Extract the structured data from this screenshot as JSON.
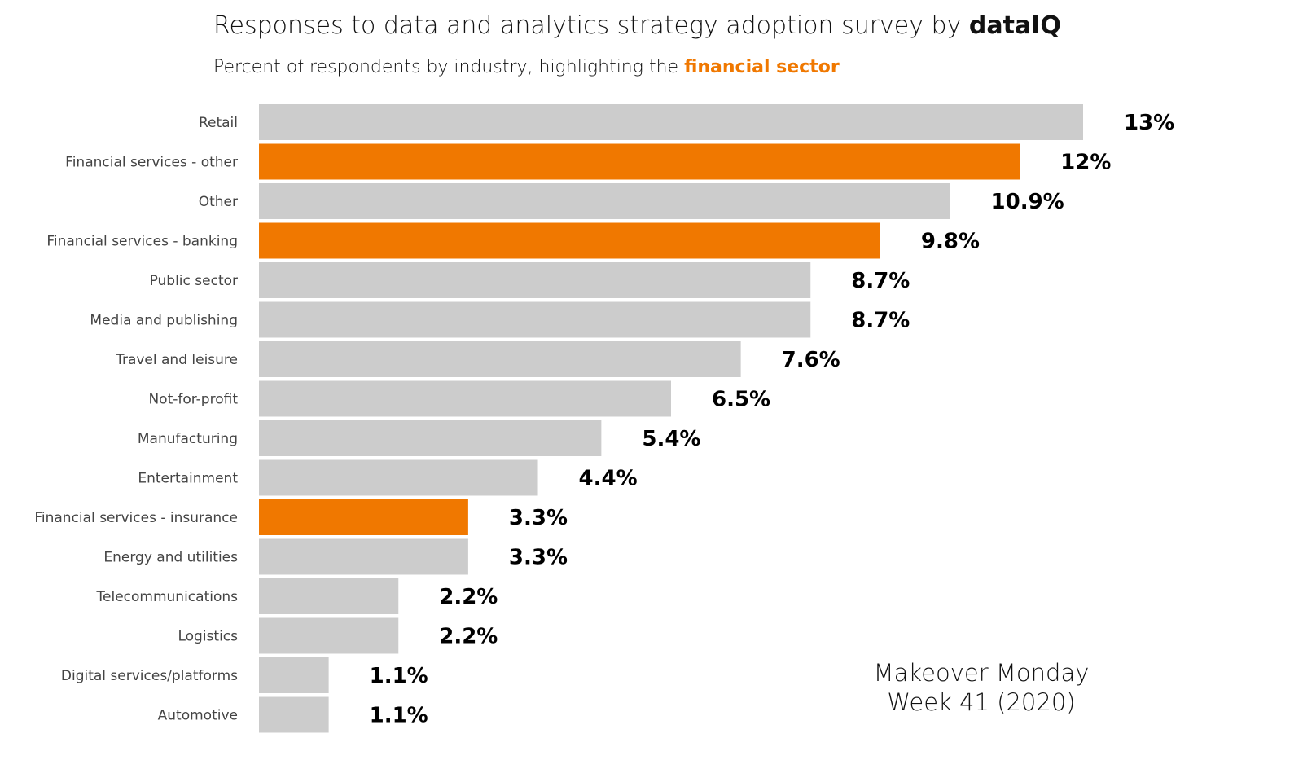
{
  "header": {
    "title_main": "Responses to data and analytics strategy adoption survey by ",
    "title_brand": "dataIQ",
    "subtitle_main": "Percent of respondents by industry, highlighting  the ",
    "subtitle_highlight": "financial sector"
  },
  "note": {
    "line1": "Makeover Monday",
    "line2": "Week 41 (2020)"
  },
  "colors": {
    "highlight": "#F07800",
    "default_bar": "#CCCCCC",
    "value_text": "#000000",
    "label_text": "#444444"
  },
  "chart_data": {
    "type": "bar",
    "orientation": "horizontal",
    "title": "Responses to data and analytics strategy adoption survey by dataIQ",
    "subtitle": "Percent of respondents by industry, highlighting  the financial sector",
    "categories": [
      "Retail",
      "Financial services - other",
      "Other",
      "Financial services - banking",
      "Public sector",
      "Media and publishing",
      "Travel and leisure",
      "Not-for-profit",
      "Manufacturing",
      "Entertainment",
      "Financial services - insurance",
      "Energy and utilities",
      "Telecommunications",
      "Logistics",
      "Digital services/platforms",
      "Automotive"
    ],
    "values": [
      13,
      12,
      10.9,
      9.8,
      8.7,
      8.7,
      7.6,
      6.5,
      5.4,
      4.4,
      3.3,
      3.3,
      2.2,
      2.2,
      1.1,
      1.1
    ],
    "value_labels": [
      "13%",
      "12%",
      "10.9%",
      "9.8%",
      "8.7%",
      "8.7%",
      "7.6%",
      "6.5%",
      "5.4%",
      "4.4%",
      "3.3%",
      "3.3%",
      "2.2%",
      "2.2%",
      "1.1%",
      "1.1%"
    ],
    "highlighted": [
      false,
      true,
      false,
      true,
      false,
      false,
      false,
      false,
      false,
      false,
      true,
      false,
      false,
      false,
      false,
      false
    ],
    "xlim": [
      0,
      13
    ],
    "grid": false,
    "legend": "none"
  }
}
